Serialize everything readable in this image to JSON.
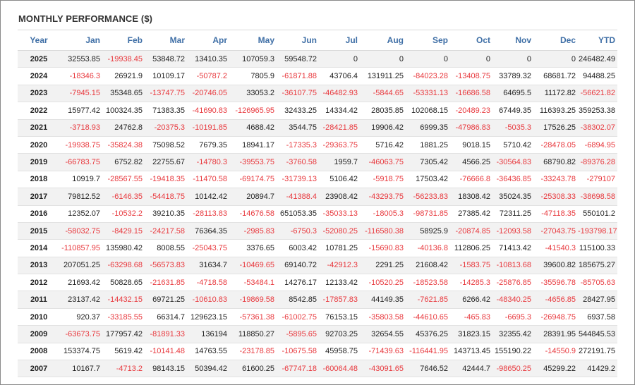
{
  "title": "MONTHLY PERFORMANCE ($)",
  "chart_data": {
    "type": "table",
    "title": "MONTHLY PERFORMANCE ($)",
    "columns": [
      "Year",
      "Jan",
      "Feb",
      "Mar",
      "Apr",
      "May",
      "Jun",
      "Jul",
      "Aug",
      "Sep",
      "Oct",
      "Nov",
      "Dec",
      "YTD"
    ],
    "rows": [
      [
        "2025",
        "32553.85",
        "-19938.45",
        "53848.72",
        "13410.35",
        "107059.3",
        "59548.72",
        "0",
        "0",
        "0",
        "0",
        "0",
        "0",
        "246482.49"
      ],
      [
        "2024",
        "-18346.3",
        "26921.9",
        "10109.17",
        "-50787.2",
        "7805.9",
        "-61871.88",
        "43706.4",
        "131911.25",
        "-84023.28",
        "-13408.75",
        "33789.32",
        "68681.72",
        "94488.25"
      ],
      [
        "2023",
        "-7945.15",
        "35348.65",
        "-13747.75",
        "-20746.05",
        "33053.2",
        "-36107.75",
        "-46482.93",
        "-5844.65",
        "-53331.13",
        "-16686.58",
        "64695.5",
        "11172.82",
        "-56621.82"
      ],
      [
        "2022",
        "15977.42",
        "100324.35",
        "71383.35",
        "-41690.83",
        "-126965.95",
        "32433.25",
        "14334.42",
        "28035.85",
        "102068.15",
        "-20489.23",
        "67449.35",
        "116393.25",
        "359253.38"
      ],
      [
        "2021",
        "-3718.93",
        "24762.8",
        "-20375.3",
        "-10191.85",
        "4688.42",
        "3544.75",
        "-28421.85",
        "19906.42",
        "6999.35",
        "-47986.83",
        "-5035.3",
        "17526.25",
        "-38302.07"
      ],
      [
        "2020",
        "-19938.75",
        "-35824.38",
        "75098.52",
        "7679.35",
        "18941.17",
        "-17335.3",
        "-29363.75",
        "5716.42",
        "1881.25",
        "9018.15",
        "5710.42",
        "-28478.05",
        "-6894.95"
      ],
      [
        "2019",
        "-66783.75",
        "6752.82",
        "22755.67",
        "-14780.3",
        "-39553.75",
        "-3760.58",
        "1959.7",
        "-46063.75",
        "7305.42",
        "4566.25",
        "-30564.83",
        "68790.82",
        "-89376.28"
      ],
      [
        "2018",
        "10919.7",
        "-28567.55",
        "-19418.35",
        "-11470.58",
        "-69174.75",
        "-31739.13",
        "5106.42",
        "-5918.75",
        "17503.42",
        "-76666.8",
        "-36436.85",
        "-33243.78",
        "-279107"
      ],
      [
        "2017",
        "79812.52",
        "-6146.35",
        "-54418.75",
        "10142.42",
        "20894.7",
        "-41388.4",
        "23908.42",
        "-43293.75",
        "-56233.83",
        "18308.42",
        "35024.35",
        "-25308.33",
        "-38698.58"
      ],
      [
        "2016",
        "12352.07",
        "-10532.2",
        "39210.35",
        "-28113.83",
        "-14676.58",
        "651053.35",
        "-35033.13",
        "-18005.3",
        "-98731.85",
        "27385.42",
        "72311.25",
        "-47118.35",
        "550101.2"
      ],
      [
        "2015",
        "-58032.75",
        "-8429.15",
        "-24217.58",
        "76364.35",
        "-2985.83",
        "-6750.3",
        "-52080.25",
        "-116580.38",
        "58925.9",
        "-20874.85",
        "-12093.58",
        "-27043.75",
        "-193798.17"
      ],
      [
        "2014",
        "-110857.95",
        "135980.42",
        "8008.55",
        "-25043.75",
        "3376.65",
        "6003.42",
        "10781.25",
        "-15690.83",
        "-40136.8",
        "112806.25",
        "71413.42",
        "-41540.3",
        "115100.33"
      ],
      [
        "2013",
        "207051.25",
        "-63298.68",
        "-56573.83",
        "31634.7",
        "-10469.65",
        "69140.72",
        "-42912.3",
        "2291.25",
        "21608.42",
        "-1583.75",
        "-10813.68",
        "39600.82",
        "185675.27"
      ],
      [
        "2012",
        "21693.42",
        "50828.65",
        "-21631.85",
        "-4718.58",
        "-53484.1",
        "14276.17",
        "12133.42",
        "-10520.25",
        "-18523.58",
        "-14285.3",
        "-25876.85",
        "-35596.78",
        "-85705.63"
      ],
      [
        "2011",
        "23137.42",
        "-14432.15",
        "69721.25",
        "-10610.83",
        "-19869.58",
        "8542.85",
        "-17857.83",
        "44149.35",
        "-7621.85",
        "6266.42",
        "-48340.25",
        "-4656.85",
        "28427.95"
      ],
      [
        "2010",
        "920.37",
        "-33185.55",
        "66314.7",
        "129623.15",
        "-57361.38",
        "-61002.75",
        "76153.15",
        "-35803.58",
        "-44610.65",
        "-465.83",
        "-6695.3",
        "-26948.75",
        "6937.58"
      ],
      [
        "2009",
        "-63673.75",
        "177957.42",
        "-81891.33",
        "136194",
        "118850.27",
        "-5895.65",
        "92703.25",
        "32654.55",
        "45376.25",
        "31823.15",
        "32355.42",
        "28391.95",
        "544845.53"
      ],
      [
        "2008",
        "153374.75",
        "5619.42",
        "-10141.48",
        "14763.55",
        "-23178.85",
        "-10675.58",
        "45958.75",
        "-71439.63",
        "-116441.95",
        "143713.45",
        "155190.22",
        "-14550.9",
        "272191.75"
      ],
      [
        "2007",
        "10167.7",
        "-4713.2",
        "98143.15",
        "50394.42",
        "61600.25",
        "-67747.18",
        "-60064.48",
        "-43091.65",
        "7646.52",
        "42444.7",
        "-98650.25",
        "45299.22",
        "41429.2"
      ]
    ]
  },
  "colors": {
    "header_text": "#3f6fa6",
    "negative": "#e8383d",
    "positive": "#222222",
    "row_alt": "#f2f2f2"
  }
}
